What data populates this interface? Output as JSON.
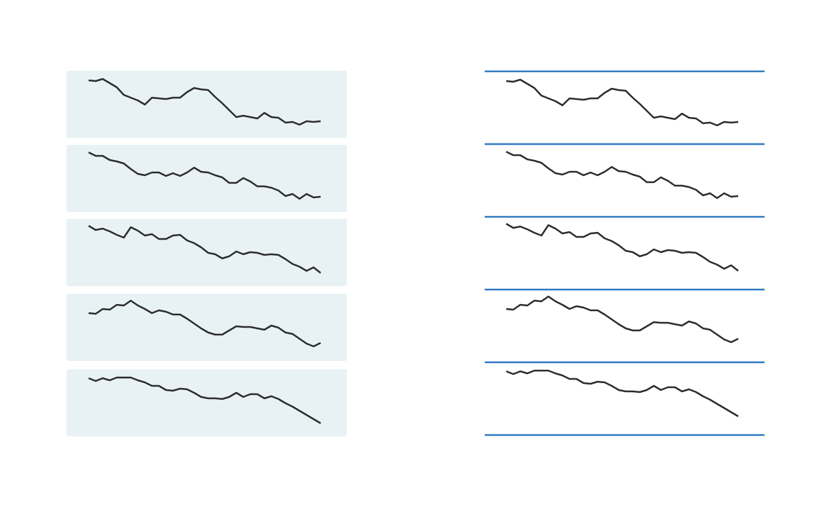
{
  "chart_data": [
    {
      "type": "line",
      "style": "panels",
      "panel_color": "#e8f2f4",
      "ylim": [
        0,
        100
      ],
      "series": [
        {
          "color": "#2b2b2b",
          "values": [
            84,
            83,
            86,
            80,
            74,
            63,
            59,
            55,
            49,
            59,
            58,
            57,
            59,
            59,
            67,
            73,
            71,
            70,
            60,
            51,
            41,
            31,
            33,
            31,
            29,
            37,
            31,
            30,
            23,
            24,
            20,
            25,
            24,
            25
          ]
        },
        {
          "color": "#2b2b2b",
          "values": [
            87,
            82,
            82,
            76,
            74,
            71,
            63,
            56,
            54,
            58,
            58,
            53,
            57,
            53,
            58,
            65,
            59,
            58,
            54,
            51,
            43,
            43,
            50,
            45,
            38,
            38,
            36,
            32,
            24,
            27,
            20,
            27,
            22,
            23
          ]
        },
        {
          "color": "#2b2b2b",
          "values": [
            88,
            82,
            84,
            80,
            75,
            71,
            86,
            81,
            74,
            76,
            69,
            69,
            74,
            75,
            67,
            63,
            57,
            49,
            47,
            41,
            44,
            51,
            47,
            50,
            49,
            46,
            47,
            46,
            40,
            33,
            29,
            23,
            28,
            20
          ]
        },
        {
          "color": "#2b2b2b",
          "values": [
            70,
            69,
            76,
            75,
            82,
            81,
            88,
            81,
            76,
            70,
            74,
            72,
            68,
            68,
            62,
            55,
            48,
            42,
            39,
            39,
            45,
            51,
            50,
            50,
            48,
            46,
            52,
            49,
            42,
            40,
            33,
            26,
            22,
            27
          ]
        },
        {
          "color": "#2b2b2b",
          "values": [
            85,
            81,
            85,
            82,
            86,
            86,
            86,
            82,
            79,
            74,
            74,
            68,
            67,
            70,
            69,
            64,
            58,
            56,
            56,
            55,
            58,
            64,
            58,
            62,
            62,
            56,
            59,
            55,
            49,
            44,
            38,
            32,
            26,
            20
          ]
        }
      ]
    },
    {
      "type": "line",
      "style": "dividers",
      "divider_color": "#2f78c0",
      "ylim": [
        0,
        100
      ],
      "series": [
        {
          "color": "#2b2b2b",
          "values": [
            84,
            83,
            86,
            80,
            74,
            63,
            59,
            55,
            49,
            59,
            58,
            57,
            59,
            59,
            67,
            73,
            71,
            70,
            60,
            51,
            41,
            31,
            33,
            31,
            29,
            37,
            31,
            30,
            23,
            24,
            20,
            25,
            24,
            25
          ]
        },
        {
          "color": "#2b2b2b",
          "values": [
            87,
            82,
            82,
            76,
            74,
            71,
            63,
            56,
            54,
            58,
            58,
            53,
            57,
            53,
            58,
            65,
            59,
            58,
            54,
            51,
            43,
            43,
            50,
            45,
            38,
            38,
            36,
            32,
            24,
            27,
            20,
            27,
            22,
            23
          ]
        },
        {
          "color": "#2b2b2b",
          "values": [
            88,
            82,
            84,
            80,
            75,
            71,
            86,
            81,
            74,
            76,
            69,
            69,
            74,
            75,
            67,
            63,
            57,
            49,
            47,
            41,
            44,
            51,
            47,
            50,
            49,
            46,
            47,
            46,
            40,
            33,
            29,
            23,
            28,
            20
          ]
        },
        {
          "color": "#2b2b2b",
          "values": [
            70,
            69,
            76,
            75,
            82,
            81,
            88,
            81,
            76,
            70,
            74,
            72,
            68,
            68,
            62,
            55,
            48,
            42,
            39,
            39,
            45,
            51,
            50,
            50,
            48,
            46,
            52,
            49,
            42,
            40,
            33,
            26,
            22,
            27
          ]
        },
        {
          "color": "#2b2b2b",
          "values": [
            85,
            81,
            85,
            82,
            86,
            86,
            86,
            82,
            79,
            74,
            74,
            68,
            67,
            70,
            69,
            64,
            58,
            56,
            56,
            55,
            58,
            64,
            58,
            62,
            62,
            56,
            59,
            55,
            49,
            44,
            38,
            32,
            26,
            20
          ]
        }
      ]
    }
  ]
}
